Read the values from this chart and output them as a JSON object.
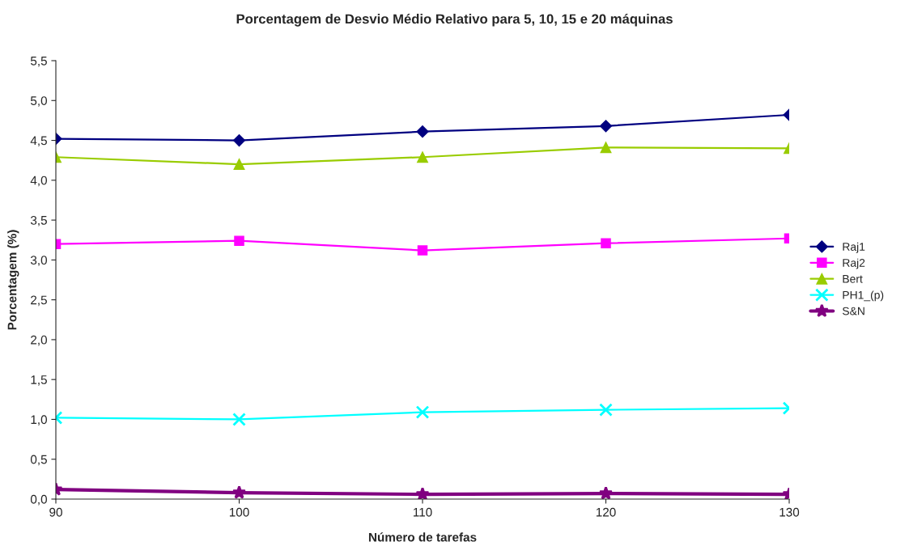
{
  "chart_data": {
    "type": "line",
    "title": "Porcentagem de Desvio Médio Relativo para 5, 10, 15 e 20 máquinas",
    "xlabel": "Número de tarefas",
    "ylabel": "Porcentagem (%)",
    "x": [
      90,
      100,
      110,
      120,
      130
    ],
    "xlim": [
      90,
      130
    ],
    "xticks": [
      90,
      100,
      110,
      120,
      130
    ],
    "ylim": [
      0,
      5.5
    ],
    "yticks": [
      {
        "value": 0,
        "label": "0,0"
      },
      {
        "value": 0.5,
        "label": "0,5"
      },
      {
        "value": 1,
        "label": "1,0"
      },
      {
        "value": 1.5,
        "label": "1,5"
      },
      {
        "value": 2,
        "label": "2,0"
      },
      {
        "value": 2.5,
        "label": "2,5"
      },
      {
        "value": 3,
        "label": "3,0"
      },
      {
        "value": 3.5,
        "label": "3,5"
      },
      {
        "value": 4,
        "label": "4,0"
      },
      {
        "value": 4.5,
        "label": "4,5"
      },
      {
        "value": 5,
        "label": "5,0"
      },
      {
        "value": 5.5,
        "label": "5,5"
      }
    ],
    "grid": false,
    "legend": "right",
    "line_style": "solid",
    "series": [
      {
        "name": "Raj1",
        "color": "#000080",
        "marker": "diamond",
        "values": [
          4.52,
          4.5,
          4.61,
          4.68,
          4.82
        ]
      },
      {
        "name": "Raj2",
        "color": "#ff00ff",
        "marker": "square",
        "values": [
          3.2,
          3.24,
          3.12,
          3.21,
          3.27
        ]
      },
      {
        "name": "Bert",
        "color": "#99cc00",
        "marker": "triangle",
        "values": [
          4.29,
          4.2,
          4.29,
          4.41,
          4.4
        ]
      },
      {
        "name": "PH1_(p)",
        "color": "#00ffff",
        "marker": "cross",
        "values": [
          1.02,
          1.0,
          1.09,
          1.12,
          1.14
        ]
      },
      {
        "name": "S&N",
        "color": "#800080",
        "marker": "star",
        "values": [
          0.12,
          0.08,
          0.06,
          0.07,
          0.06
        ]
      }
    ]
  }
}
